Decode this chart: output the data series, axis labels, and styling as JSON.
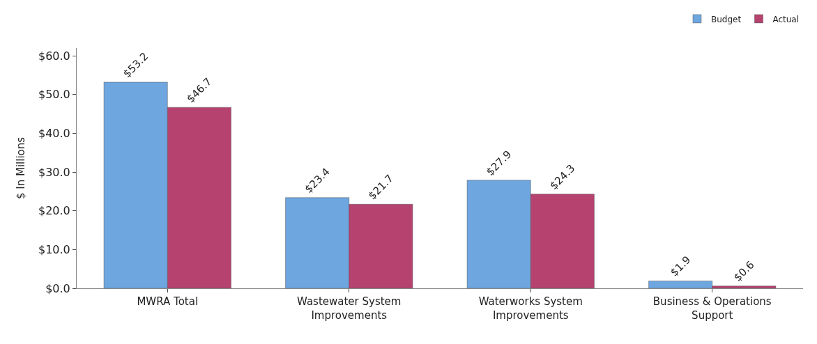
{
  "chart_data": {
    "type": "bar",
    "ylabel": "$ In Millions",
    "categories": [
      "MWRA Total",
      "Wastewater System\nImprovements",
      "Waterworks System\nImprovements",
      "Business & Operations\nSupport"
    ],
    "series": [
      {
        "name": "Budget",
        "color": "#6ea6e0",
        "values": [
          53.2,
          23.4,
          27.9,
          1.9
        ],
        "value_labels": [
          "$53.2",
          "$23.4",
          "$27.9",
          "$1.9"
        ]
      },
      {
        "name": "Actual",
        "color": "#b5426f",
        "values": [
          46.7,
          21.7,
          24.3,
          0.6
        ],
        "value_labels": [
          "$46.7",
          "$21.7",
          "$24.3",
          "$0.6"
        ]
      }
    ],
    "ylim": [
      0,
      62
    ],
    "yticks": [
      {
        "value": 0,
        "label": "$0.0"
      },
      {
        "value": 10,
        "label": "$10.0"
      },
      {
        "value": 20,
        "label": "$20.0"
      },
      {
        "value": 30,
        "label": "$30.0"
      },
      {
        "value": 40,
        "label": "$40.0"
      },
      {
        "value": 50,
        "label": "$50.0"
      },
      {
        "value": 60,
        "label": "$60.0"
      }
    ],
    "legend": "top right"
  }
}
